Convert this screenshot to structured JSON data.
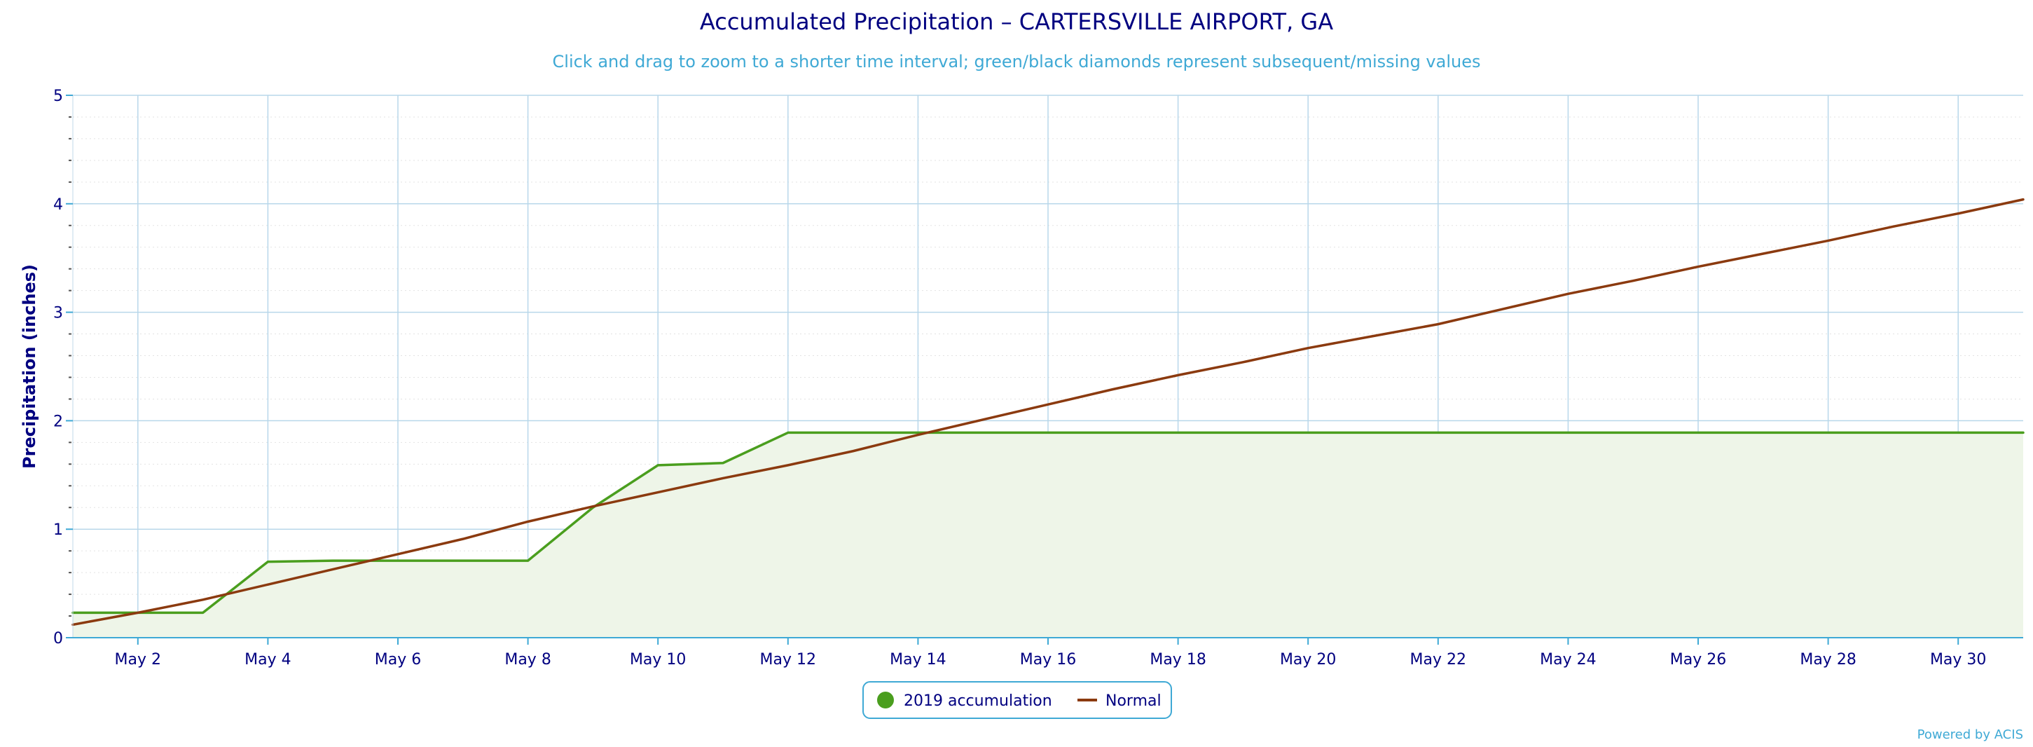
{
  "chart_data": {
    "type": "area",
    "title": "Accumulated Precipitation – CARTERSVILLE AIRPORT, GA",
    "subtitle": "Click and drag to zoom to a shorter time interval; green/black diamonds represent subsequent/missing values",
    "xlabel": "",
    "ylabel": "Precipitation (inches)",
    "ylim": [
      0,
      5
    ],
    "xlim": [
      1,
      31
    ],
    "y_ticks": [
      "0",
      "1",
      "2",
      "3",
      "4",
      "5"
    ],
    "y_tick_values": [
      0,
      1,
      2,
      3,
      4,
      5
    ],
    "x_tick_values": [
      2,
      4,
      6,
      8,
      10,
      12,
      14,
      16,
      18,
      20,
      22,
      24,
      26,
      28,
      30
    ],
    "x_ticks": [
      "May 2",
      "May 4",
      "May 6",
      "May 8",
      "May 10",
      "May 12",
      "May 14",
      "May 16",
      "May 18",
      "May 20",
      "May 22",
      "May 24",
      "May 26",
      "May 28",
      "May 30"
    ],
    "grid": true,
    "legend_position": "bottom-center",
    "series": [
      {
        "name": "2019 accumulation",
        "color": "#4a9e1e",
        "fill": "#eef5e8",
        "style": "area",
        "x": [
          1,
          2,
          3,
          4,
          5,
          6,
          7,
          8,
          9,
          10,
          11,
          12,
          13,
          14,
          15,
          16,
          17,
          18,
          19,
          20,
          21,
          22,
          23,
          24,
          25,
          26,
          27,
          28,
          29,
          30,
          31
        ],
        "values": [
          0.23,
          0.23,
          0.23,
          0.7,
          0.71,
          0.71,
          0.71,
          0.71,
          1.2,
          1.59,
          1.61,
          1.89,
          1.89,
          1.89,
          1.89,
          1.89,
          1.89,
          1.89,
          1.89,
          1.89,
          1.89,
          1.89,
          1.89,
          1.89,
          1.89,
          1.89,
          1.89,
          1.89,
          1.89,
          1.89,
          1.89
        ]
      },
      {
        "name": "Normal",
        "color": "#8b3a0f",
        "style": "line",
        "x": [
          1,
          2,
          3,
          4,
          5,
          6,
          7,
          8,
          9,
          10,
          11,
          12,
          13,
          14,
          15,
          16,
          17,
          18,
          19,
          20,
          21,
          22,
          23,
          24,
          25,
          26,
          27,
          28,
          29,
          30,
          31
        ],
        "values": [
          0.12,
          0.23,
          0.35,
          0.49,
          0.63,
          0.77,
          0.91,
          1.07,
          1.21,
          1.34,
          1.47,
          1.59,
          1.72,
          1.87,
          2.01,
          2.15,
          2.29,
          2.42,
          2.54,
          2.67,
          2.78,
          2.89,
          3.03,
          3.17,
          3.29,
          3.42,
          3.54,
          3.66,
          3.79,
          3.91,
          4.04
        ]
      }
    ],
    "credit": "Powered by ACIS"
  }
}
